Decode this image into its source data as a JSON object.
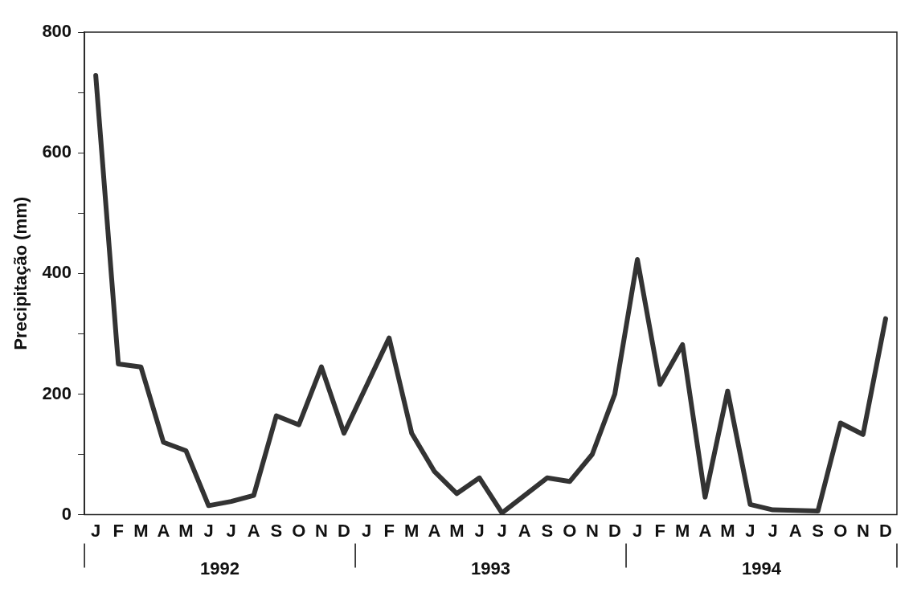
{
  "chart_data": {
    "type": "line",
    "ylabel": "Precipitação (mm)",
    "categories": [
      "J",
      "F",
      "M",
      "A",
      "M",
      "J",
      "J",
      "A",
      "S",
      "O",
      "N",
      "D",
      "J",
      "F",
      "M",
      "A",
      "M",
      "J",
      "J",
      "A",
      "S",
      "O",
      "N",
      "D",
      "J",
      "F",
      "M",
      "A",
      "M",
      "J",
      "J",
      "A",
      "S",
      "O",
      "N",
      "D"
    ],
    "values": [
      728,
      250,
      245,
      120,
      106,
      15,
      22,
      32,
      164,
      149,
      245,
      135,
      214,
      293,
      135,
      72,
      35,
      61,
      3,
      32,
      61,
      55,
      100,
      200,
      423,
      216,
      282,
      29,
      205,
      17,
      8,
      7,
      6,
      152,
      133,
      325
    ],
    "color": "#333333",
    "ylim": [
      0,
      800
    ],
    "yticks": [
      0,
      {
        "value": 100,
        "label": null
      },
      200,
      {
        "value": 300,
        "label": null
      },
      400,
      {
        "value": 500,
        "label": null
      },
      600,
      {
        "value": 700,
        "label": null
      },
      800
    ],
    "annotations": [
      "1992",
      "1993",
      "1994"
    ],
    "grid": false,
    "legend": false,
    "marker": "none",
    "line_style": "solid"
  }
}
